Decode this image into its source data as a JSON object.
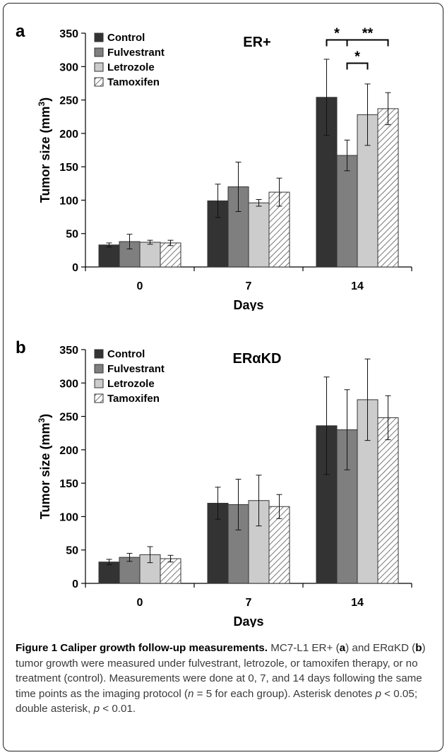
{
  "chart_data": [
    {
      "type": "bar",
      "panel_label": "a",
      "title": "ER+",
      "xlabel": "Days",
      "ylabel": "Tumor size (mm",
      "ylabel_superscript": "3",
      "ylabel_close": ")",
      "categories": [
        "0",
        "7",
        "14"
      ],
      "ylim": [
        0,
        350
      ],
      "yticks": [
        "0",
        "50",
        "100",
        "150",
        "200",
        "250",
        "300",
        "350"
      ],
      "grid": false,
      "legend_position": "top-left",
      "series": [
        {
          "name": "Control",
          "fill": "#333333",
          "values": [
            33,
            99,
            254
          ],
          "errors": [
            3,
            25,
            57
          ]
        },
        {
          "name": "Fulvestrant",
          "fill": "#7f7f7f",
          "values": [
            38,
            120,
            167
          ],
          "errors": [
            11,
            37,
            23
          ]
        },
        {
          "name": "Letrozole",
          "fill": "#cccccc",
          "values": [
            37,
            96,
            228
          ],
          "errors": [
            3,
            5,
            46
          ]
        },
        {
          "name": "Tamoxifen",
          "fill": "hatch",
          "values": [
            36,
            112,
            237
          ],
          "errors": [
            4,
            21,
            24
          ]
        }
      ],
      "annotations": [
        {
          "text": "*",
          "category": "14",
          "from_series": 0,
          "to_series": 1,
          "level": 340
        },
        {
          "text": "*",
          "category": "14",
          "from_series": 1,
          "to_series": 2,
          "level": 305
        },
        {
          "text": "**",
          "category": "14",
          "from_series": 1,
          "to_series": 3,
          "level": 340
        }
      ]
    },
    {
      "type": "bar",
      "panel_label": "b",
      "title": "ERαKD",
      "xlabel": "Days",
      "ylabel": "Tumor size (mm",
      "ylabel_superscript": "3",
      "ylabel_close": ")",
      "categories": [
        "0",
        "7",
        "14"
      ],
      "ylim": [
        0,
        350
      ],
      "yticks": [
        "0",
        "50",
        "100",
        "150",
        "200",
        "250",
        "300",
        "350"
      ],
      "grid": false,
      "legend_position": "top-left",
      "series": [
        {
          "name": "Control",
          "fill": "#333333",
          "values": [
            32,
            120,
            236
          ],
          "errors": [
            4,
            24,
            73
          ]
        },
        {
          "name": "Fulvestrant",
          "fill": "#7f7f7f",
          "values": [
            39,
            118,
            230
          ],
          "errors": [
            6,
            38,
            60
          ]
        },
        {
          "name": "Letrozole",
          "fill": "#cccccc",
          "values": [
            43,
            124,
            275
          ],
          "errors": [
            12,
            38,
            61
          ]
        },
        {
          "name": "Tamoxifen",
          "fill": "hatch",
          "values": [
            37,
            115,
            248
          ],
          "errors": [
            5,
            18,
            33
          ]
        }
      ],
      "annotations": []
    }
  ],
  "caption": {
    "title": "Figure 1 Caliper growth follow-up measurements.",
    "segments": [
      {
        "text": " MC7-L1 ER+ (",
        "style": "normal"
      },
      {
        "text": "a",
        "style": "bold"
      },
      {
        "text": ") and ERαKD (",
        "style": "normal"
      },
      {
        "text": "b",
        "style": "bold"
      },
      {
        "text": ") tumor growth were measured under fulvestrant, letrozole, or tamoxifen therapy, or no treatment (control). Measurements were done at 0, 7, and 14 days following the same time points as the imaging protocol (",
        "style": "normal"
      },
      {
        "text": "n",
        "style": "italic"
      },
      {
        "text": " = 5 for each group). Asterisk denotes ",
        "style": "normal"
      },
      {
        "text": "p",
        "style": "italic"
      },
      {
        "text": " < 0.05; double asterisk, ",
        "style": "normal"
      },
      {
        "text": "p",
        "style": "italic"
      },
      {
        "text": " < 0.01.",
        "style": "normal"
      }
    ]
  }
}
